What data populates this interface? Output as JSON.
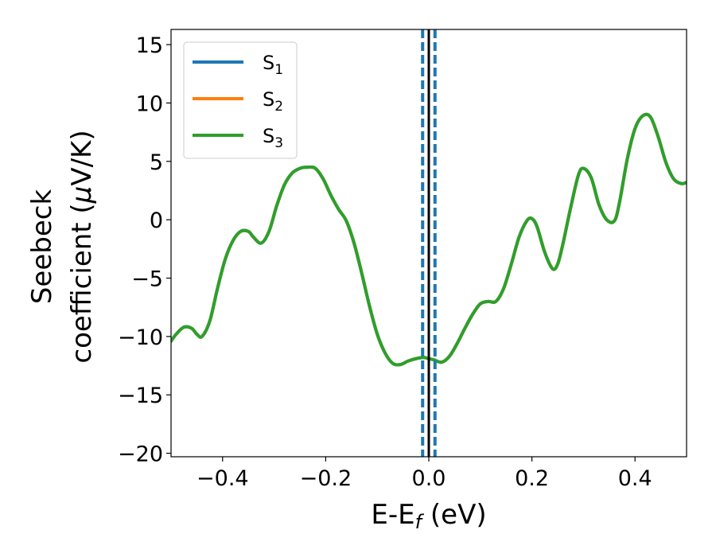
{
  "chart_data": {
    "type": "line",
    "xlabel": {
      "base": "E-E",
      "sub": "f",
      "rest": " (eV)"
    },
    "ylabel": {
      "line1": "Seebeck",
      "line2_pre": "coefficient  (",
      "mu": "μ",
      "line2_post": "V/K)"
    },
    "xlim": [
      -0.5,
      0.5
    ],
    "ylim": [
      -20.3,
      16.3
    ],
    "xticks": [
      -0.4,
      -0.2,
      0.0,
      0.2,
      0.4
    ],
    "xtick_labels": [
      "−0.4",
      "−0.2",
      "0.0",
      "0.2",
      "0.4"
    ],
    "yticks": [
      -20,
      -15,
      -10,
      -5,
      0,
      5,
      10,
      15
    ],
    "ytick_labels": [
      "−20",
      "−15",
      "−10",
      "−5",
      "0",
      "5",
      "10",
      "15"
    ],
    "legend_position": "top-left",
    "series": [
      {
        "name": "S",
        "sub": "1",
        "color": "#1f77b4"
      },
      {
        "name": "S",
        "sub": "2",
        "color": "#ff7f0e"
      },
      {
        "name": "S",
        "sub": "3",
        "color": "#2ca02c"
      }
    ],
    "curve": {
      "x": [
        -0.5,
        -0.49,
        -0.475,
        -0.46,
        -0.45,
        -0.44,
        -0.425,
        -0.41,
        -0.395,
        -0.38,
        -0.365,
        -0.35,
        -0.34,
        -0.325,
        -0.31,
        -0.295,
        -0.28,
        -0.265,
        -0.25,
        -0.235,
        -0.22,
        -0.205,
        -0.19,
        -0.175,
        -0.16,
        -0.145,
        -0.13,
        -0.115,
        -0.1,
        -0.085,
        -0.07,
        -0.055,
        -0.04,
        -0.025,
        -0.01,
        0.0,
        0.01,
        0.025,
        0.04,
        0.055,
        0.07,
        0.085,
        0.1,
        0.115,
        0.13,
        0.145,
        0.16,
        0.175,
        0.19,
        0.2,
        0.21,
        0.225,
        0.24,
        0.25,
        0.26,
        0.275,
        0.29,
        0.3,
        0.315,
        0.33,
        0.345,
        0.36,
        0.37,
        0.385,
        0.4,
        0.415,
        0.43,
        0.445,
        0.46,
        0.475,
        0.49,
        0.5
      ],
      "y": [
        -10.4,
        -9.8,
        -9.2,
        -9.3,
        -9.8,
        -10.0,
        -8.7,
        -5.9,
        -3.4,
        -1.8,
        -1.0,
        -1.0,
        -1.5,
        -2.0,
        -1.0,
        1.2,
        3.0,
        4.0,
        4.4,
        4.5,
        4.4,
        3.5,
        2.1,
        0.9,
        -0.1,
        -2.0,
        -4.6,
        -7.4,
        -9.8,
        -11.4,
        -12.3,
        -12.4,
        -12.1,
        -11.9,
        -11.8,
        -11.9,
        -12.0,
        -12.2,
        -11.7,
        -10.6,
        -9.3,
        -8.1,
        -7.2,
        -7.0,
        -7.0,
        -5.9,
        -3.8,
        -1.5,
        -0.1,
        0.1,
        -0.6,
        -2.8,
        -4.2,
        -3.8,
        -2.1,
        1.0,
        3.8,
        4.4,
        3.6,
        1.3,
        0.0,
        -0.1,
        1.5,
        5.2,
        7.8,
        8.9,
        8.8,
        7.1,
        4.9,
        3.5,
        3.1,
        3.2
      ]
    },
    "vlines": [
      {
        "x": -0.012,
        "style": "dashed",
        "color": "#1f77b4"
      },
      {
        "x": 0.012,
        "style": "dashed",
        "color": "#1f77b4"
      },
      {
        "x": 0.0,
        "style": "solid",
        "color": "#000000"
      }
    ]
  }
}
